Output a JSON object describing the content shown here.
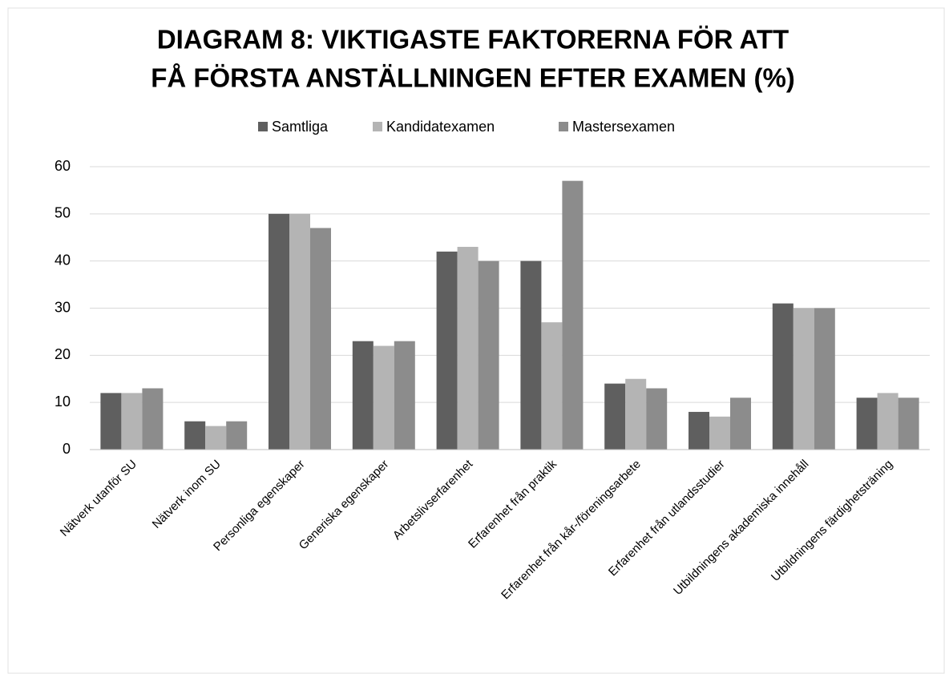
{
  "chart_data": {
    "type": "bar",
    "title": [
      "DIAGRAM 8: VIKTIGASTE FAKTORERNA FÖR ATT",
      "FÅ FÖRSTA ANSTÄLLNINGEN EFTER EXAMEN (%)"
    ],
    "categories": [
      "Nätverk utanför SU",
      "Nätverk inom SU",
      "Personliga egenskaper",
      "Generiska egenskaper",
      "Arbetslivserfarenhet",
      "Erfarenhet från praktik",
      "Erfarenhet från kår-/föreningsarbete",
      "Erfarenhet från utlandsstudier",
      "Utbildningens akademiska innehåll",
      "Utbildningens färdighetsträning"
    ],
    "series": [
      {
        "name": "Samtliga",
        "color": "#5f5f5f",
        "values": [
          12,
          6,
          50,
          23,
          42,
          40,
          14,
          8,
          31,
          11
        ]
      },
      {
        "name": "Kandidatexamen",
        "color": "#b4b4b4",
        "values": [
          12,
          5,
          50,
          22,
          43,
          27,
          15,
          7,
          30,
          12
        ]
      },
      {
        "name": "Mastersexamen",
        "color": "#8c8c8c",
        "values": [
          13,
          6,
          47,
          23,
          40,
          57,
          13,
          11,
          30,
          11
        ]
      }
    ],
    "ylim": [
      0,
      60
    ],
    "yticks": [
      0,
      10,
      20,
      30,
      40,
      50,
      60
    ],
    "grid": true,
    "legend": "top"
  }
}
